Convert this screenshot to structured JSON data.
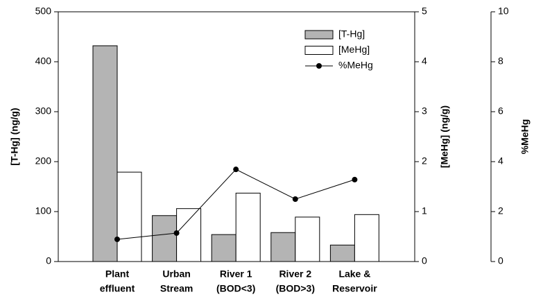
{
  "chart_data": {
    "type": "bar",
    "categories": [
      [
        "Plant",
        "effluent"
      ],
      [
        "Urban",
        "Stream"
      ],
      [
        "River 1",
        "(BOD<3)"
      ],
      [
        "River 2",
        "(BOD>3)"
      ],
      [
        "Lake &",
        "Reservoir"
      ]
    ],
    "ylabel": "[T-Hg] (ng/g)",
    "y2label": "[MeHg] (ng/g)",
    "y3label": "%MeHg",
    "ylim": [
      0,
      500
    ],
    "yticks": [
      0,
      100,
      200,
      300,
      400,
      500
    ],
    "y2lim": [
      0,
      5
    ],
    "y2ticks": [
      0,
      1,
      2,
      3,
      4,
      5
    ],
    "y3lim": [
      0,
      10
    ],
    "y3ticks": [
      0,
      2,
      4,
      6,
      8,
      10
    ],
    "legend": "upper right",
    "series": [
      {
        "name": "[T-Hg]",
        "type": "bar",
        "axis": "y",
        "color": "#b4b4b4",
        "values": [
          432,
          92,
          54,
          58,
          33
        ]
      },
      {
        "name": "[MeHg]",
        "type": "bar",
        "axis": "y2",
        "color": "#ffffff",
        "values": [
          1.79,
          1.06,
          1.37,
          0.89,
          0.94
        ]
      },
      {
        "name": "%MeHg",
        "type": "line",
        "axis": "y3",
        "color": "#000000",
        "values": [
          0.89,
          1.14,
          3.69,
          2.5,
          3.28
        ]
      }
    ]
  }
}
